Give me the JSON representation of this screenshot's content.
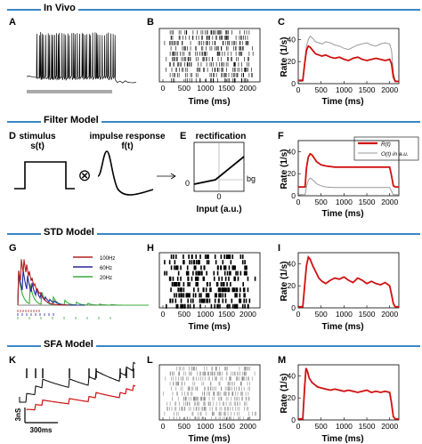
{
  "sections": [
    {
      "title": "In Vivo"
    },
    {
      "title": "Filter Model"
    },
    {
      "title": "STD Model"
    },
    {
      "title": "SFA Model"
    }
  ],
  "panels": {
    "A": "A",
    "B": "B",
    "C": "C",
    "D": "D",
    "E": "E",
    "F": "F",
    "G": "G",
    "H": "H",
    "I": "I",
    "K": "K",
    "L": "L",
    "M": "M"
  },
  "common": {
    "time_label": "Time  (ms)",
    "rate_label": "Rate  (1/s)"
  },
  "filter_model": {
    "stimulus_label": "stimulus",
    "stimulus_formula": "s(t)",
    "convolution_symbol": "⊗",
    "impulse_label": "impulse response",
    "impulse_formula": "f(t)",
    "rectification_label": "rectification",
    "zero_label": "0",
    "bg_label": "bg",
    "input_label": "Input (a.u.)"
  },
  "std_legend": [
    "100Hz",
    "60Hz",
    "20Hz"
  ],
  "sfa": {
    "scale_y": "3nS",
    "scale_x": "300ms"
  },
  "colors": {
    "section_line": "#3a87c8",
    "rate_red": "#d01010",
    "rate_gray": "#999999",
    "std_100hz": "#b22222",
    "std_60hz": "#27279a",
    "std_20hz": "#3aa83a"
  },
  "chart_data": [
    {
      "panel": "C",
      "type": "line",
      "xlabel": "Time  (ms)",
      "ylabel": "Rate  (1/s)",
      "xticks": [
        0,
        500,
        1000,
        1500,
        2000
      ],
      "yticks": [
        0,
        20,
        40
      ],
      "xlim": [
        0,
        2200
      ],
      "ylim": [
        0,
        50
      ],
      "series": [
        {
          "color": "#999999",
          "x": [
            0,
            100,
            140,
            180,
            220,
            260,
            320,
            380,
            450,
            520,
            600,
            700,
            800,
            900,
            1000,
            1100,
            1200,
            1300,
            1400,
            1500,
            1600,
            1700,
            1800,
            1900,
            2000,
            2040,
            2080,
            2120,
            2200
          ],
          "values": [
            2,
            2,
            20,
            34,
            40,
            43,
            41,
            38,
            37,
            36,
            38,
            37,
            35,
            34,
            32,
            31,
            33,
            35,
            36,
            37,
            35,
            34,
            36,
            37,
            36,
            30,
            10,
            3,
            2
          ]
        },
        {
          "color": "#d01010",
          "x": [
            0,
            100,
            140,
            180,
            220,
            260,
            320,
            380,
            450,
            520,
            600,
            700,
            800,
            900,
            1000,
            1100,
            1200,
            1300,
            1400,
            1500,
            1600,
            1700,
            1800,
            1900,
            2000,
            2040,
            2080,
            2120,
            2200
          ],
          "values": [
            3,
            3,
            18,
            30,
            34,
            33,
            30,
            27,
            26,
            25,
            26,
            24,
            23,
            24,
            22,
            21,
            23,
            24,
            22,
            21,
            22,
            23,
            22,
            21,
            22,
            18,
            6,
            2,
            2
          ]
        }
      ]
    },
    {
      "panel": "F",
      "type": "line",
      "xlabel": "Time  (ms)",
      "ylabel": "Rate  (1/s)",
      "xticks": [
        0,
        500,
        1000,
        1500,
        2000
      ],
      "yticks": [
        0,
        20,
        40
      ],
      "xlim": [
        0,
        2200
      ],
      "ylim": [
        0,
        50
      ],
      "legend": [
        "R(t)",
        "O(t) in a.u."
      ],
      "series": [
        {
          "name": "R(t)",
          "color": "#d01010",
          "x": [
            0,
            150,
            180,
            220,
            260,
            300,
            350,
            400,
            500,
            600,
            800,
            1000,
            1200,
            1500,
            1800,
            2000,
            2040,
            2080,
            2120,
            2200
          ],
          "values": [
            8,
            8,
            25,
            35,
            38,
            37,
            34,
            31,
            28,
            27,
            26,
            26,
            26,
            26,
            26,
            26,
            18,
            9,
            8,
            8
          ]
        },
        {
          "name": "O(t) in a.u.",
          "color": "#999999",
          "x": [
            0,
            150,
            180,
            220,
            260,
            300,
            350,
            400,
            500,
            600,
            800,
            1000,
            1200,
            1500,
            1800,
            2000,
            2040,
            2080,
            2120,
            2200
          ],
          "values": [
            1,
            1,
            8,
            14,
            16,
            15,
            13,
            11,
            9,
            8,
            7.5,
            7.5,
            7.5,
            7.5,
            7.5,
            7.5,
            4,
            1,
            1,
            1
          ]
        }
      ]
    },
    {
      "panel": "I",
      "type": "line",
      "xlabel": "Time  (ms)",
      "ylabel": "Rate  (1/s)",
      "xticks": [
        0,
        500,
        1000,
        1500,
        2000
      ],
      "yticks": [
        0,
        20,
        40
      ],
      "xlim": [
        0,
        2200
      ],
      "ylim": [
        0,
        50
      ],
      "series": [
        {
          "color": "#d01010",
          "x": [
            0,
            100,
            140,
            180,
            220,
            260,
            320,
            380,
            450,
            520,
            600,
            700,
            800,
            900,
            1000,
            1100,
            1200,
            1300,
            1400,
            1500,
            1600,
            1700,
            1800,
            1900,
            2000,
            2040,
            2080,
            2120,
            2200
          ],
          "values": [
            1,
            1,
            20,
            38,
            46,
            44,
            38,
            33,
            27,
            24,
            22,
            25,
            27,
            26,
            28,
            25,
            23,
            27,
            25,
            22,
            24,
            22,
            21,
            23,
            20,
            12,
            4,
            1,
            1
          ]
        }
      ]
    },
    {
      "panel": "M",
      "type": "line",
      "xlabel": "Time  (ms)",
      "ylabel": "Rate  (1/s)",
      "xticks": [
        0,
        500,
        1000,
        1500,
        2000
      ],
      "yticks": [
        0,
        20,
        40
      ],
      "xlim": [
        0,
        2200
      ],
      "ylim": [
        0,
        50
      ],
      "series": [
        {
          "color": "#d01010",
          "x": [
            0,
            100,
            140,
            170,
            200,
            240,
            300,
            360,
            420,
            500,
            600,
            700,
            800,
            900,
            1000,
            1100,
            1200,
            1300,
            1400,
            1500,
            1600,
            1700,
            1800,
            1900,
            2000,
            2040,
            2080,
            2120,
            2200
          ],
          "values": [
            1,
            1,
            30,
            47,
            44,
            38,
            34,
            32,
            30,
            29,
            28,
            27,
            28,
            27,
            26,
            27,
            26,
            25,
            26,
            27,
            25,
            26,
            25,
            26,
            25,
            15,
            3,
            1,
            1
          ]
        }
      ]
    }
  ]
}
